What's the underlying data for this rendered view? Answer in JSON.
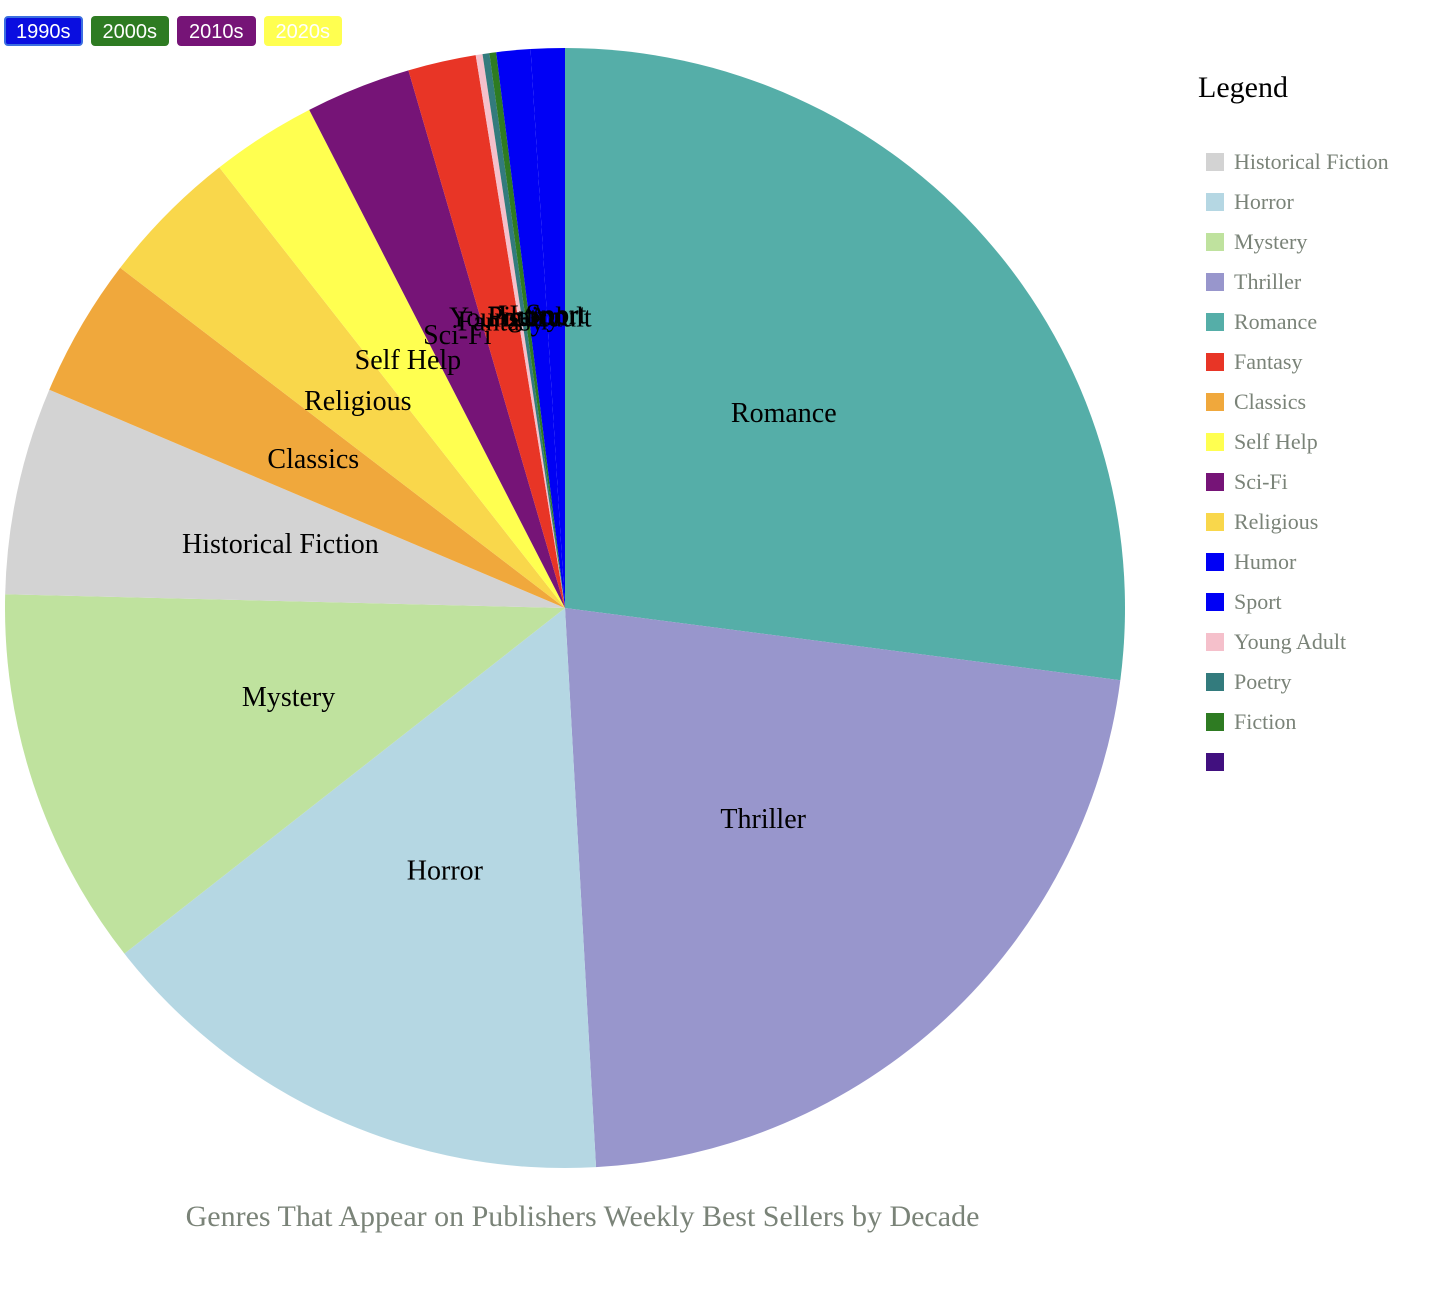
{
  "decade_buttons": [
    {
      "label": "1990s",
      "color": "#0a0ee0",
      "selected": true
    },
    {
      "label": "2000s",
      "color": "#2e7b22",
      "selected": false
    },
    {
      "label": "2010s",
      "color": "#761477",
      "selected": false
    },
    {
      "label": "2020s",
      "color": "#ffff50",
      "selected": false
    }
  ],
  "legend": {
    "title": "Legend",
    "items": [
      {
        "label": "Historical Fiction",
        "color": "#d3d3d3"
      },
      {
        "label": "Horror",
        "color": "#b5d7e3"
      },
      {
        "label": "Mystery",
        "color": "#bfe29e"
      },
      {
        "label": "Thriller",
        "color": "#9896cc"
      },
      {
        "label": "Romance",
        "color": "#55aea8"
      },
      {
        "label": "Fantasy",
        "color": "#e83526"
      },
      {
        "label": "Classics",
        "color": "#f0a83c"
      },
      {
        "label": "Self Help",
        "color": "#ffff50"
      },
      {
        "label": "Sci-Fi",
        "color": "#761477"
      },
      {
        "label": "Religious",
        "color": "#f9d74b"
      },
      {
        "label": "Humor",
        "color": "#0000f5"
      },
      {
        "label": "Sport",
        "color": "#0000f5"
      },
      {
        "label": "Young Adult",
        "color": "#f5c0cb"
      },
      {
        "label": "Poetry",
        "color": "#337b7d"
      },
      {
        "label": "Fiction",
        "color": "#2e7b22"
      },
      {
        "label": "",
        "color": "#41107f"
      }
    ]
  },
  "caption": "Genres That Appear on Publishers Weekly Best Sellers by Decade",
  "chart_data": {
    "type": "pie",
    "slices": [
      {
        "label": "Romance",
        "value": 27.6,
        "color": "#55aea8"
      },
      {
        "label": "Thriller",
        "value": 22.5,
        "color": "#9896cc"
      },
      {
        "label": "Horror",
        "value": 15.6,
        "color": "#b5d7e3"
      },
      {
        "label": "Mystery",
        "value": 11.2,
        "color": "#bfe29e"
      },
      {
        "label": "Historical Fiction",
        "value": 6.1,
        "color": "#d3d3d3"
      },
      {
        "label": "Classics",
        "value": 4.1,
        "color": "#f0a83c"
      },
      {
        "label": "Religious",
        "value": 4.1,
        "color": "#f9d74b"
      },
      {
        "label": "Self Help",
        "value": 3.1,
        "color": "#ffff50"
      },
      {
        "label": "Sci-Fi",
        "value": 3.1,
        "color": "#761477"
      },
      {
        "label": "Fantasy",
        "value": 2.0,
        "color": "#e83526"
      },
      {
        "label": "Young Adult",
        "value": 0.2,
        "color": "#f5c0cb"
      },
      {
        "label": "Poetry",
        "value": 0.2,
        "color": "#337b7d"
      },
      {
        "label": "Fiction",
        "value": 0.2,
        "color": "#2e7b22"
      },
      {
        "label": "Humor",
        "value": 1.0,
        "color": "#0000f5"
      },
      {
        "label": "Sport",
        "value": 1.0,
        "color": "#0000f5"
      }
    ]
  }
}
